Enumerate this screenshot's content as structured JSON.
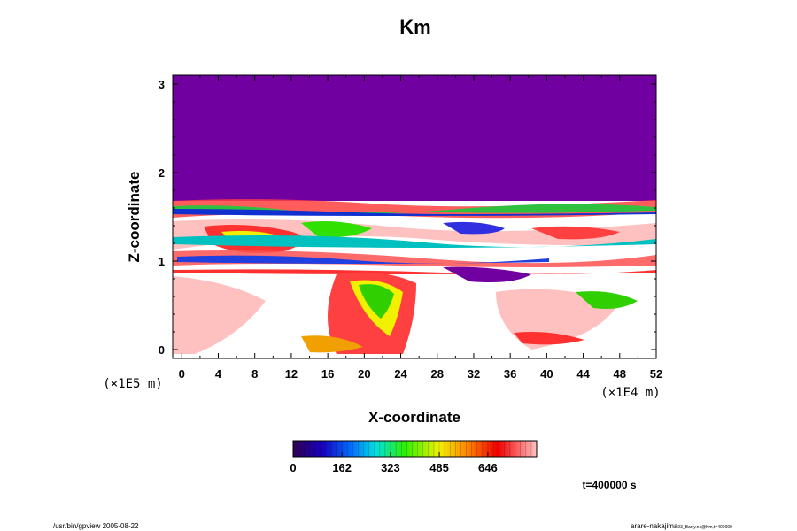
{
  "chart_data": {
    "type": "heatmap",
    "title": "Km",
    "xlabel": "X-coordinate",
    "ylabel": "Z-coordinate",
    "x_unit": "(×1E4 m)",
    "y_unit": "(×1E5 m)",
    "xlim": [
      -1,
      52
    ],
    "ylim": [
      -0.1,
      3.1
    ],
    "x_ticks": [
      "0",
      "4",
      "8",
      "12",
      "16",
      "20",
      "24",
      "28",
      "32",
      "36",
      "40",
      "44",
      "48",
      "52"
    ],
    "y_ticks": [
      "0",
      "1",
      "2",
      "3"
    ],
    "colorbar": {
      "min": 0,
      "max": 808,
      "tick_labels": [
        "0",
        "162",
        "323",
        "485",
        "646"
      ],
      "tick_values": [
        0,
        162,
        323,
        485,
        646
      ]
    },
    "upper_region_value": 0,
    "upper_region_from_z": 1.68,
    "time_label": "t=400000 s",
    "colors": {
      "upper": "#7000a0",
      "background": "#ffffff"
    }
  },
  "footer": {
    "left": "/usr/bin/gpview 2005-08-22",
    "right_main": "arare-nakajima",
    "right_small": "03_Barry.nc@Km,t=400000"
  }
}
